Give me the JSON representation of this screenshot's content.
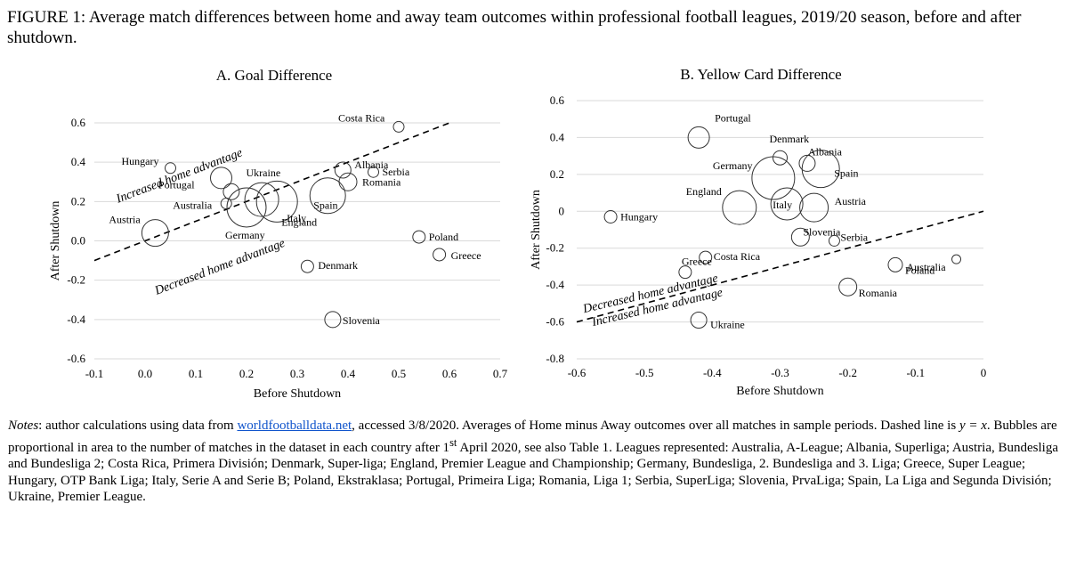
{
  "figure_title": "FIGURE 1: Average match differences between home and away team outcomes within professional football leagues, 2019/20 season, before and after shutdown.",
  "notes": {
    "lead": "Notes",
    "p1": ": author calculations using data from ",
    "link": "worldfootballdata.net",
    "p2": ", accessed 3/8/2020. Averages of Home minus Away outcomes over all matches in sample periods. Dashed line is ",
    "eq": "y = x",
    "p3": ". Bubbles are proportional in area to the number of matches in the dataset in each country after 1",
    "sup": "st",
    "p4": " April 2020, see also Table 1. Leagues represented: Australia, A-League; Albania, Superliga; Austria, Bundesliga and Bundesliga 2; Costa Rica, Primera División; Denmark, Super-liga; England, Premier League and Championship; Germany, Bundesliga, 2. Bundesliga and 3. Liga; Greece, Super League; Hungary, OTP Bank Liga; Italy, Serie A and Serie B; Poland, Ekstraklasa; Portugal, Primeira Liga; Romania, Liga 1; Serbia, SuperLiga; Slovenia, PrvaLiga; Spain, La Liga and Segunda División; Ukraine, Premier League."
  },
  "chart_data": [
    {
      "type": "scatter",
      "title": "A. Goal Difference",
      "xlabel": "Before Shutdown",
      "ylabel": "After Shutdown",
      "xlim": [
        -0.1,
        0.7
      ],
      "ylim": [
        -0.6,
        0.6
      ],
      "xticks": [
        "-0.1",
        "0.0",
        "0.1",
        "0.2",
        "0.3",
        "0.4",
        "0.5",
        "0.6",
        "0.7"
      ],
      "yticks": [
        "-0.6",
        "-0.4",
        "-0.2",
        "0.0",
        "0.2",
        "0.4",
        "0.6"
      ],
      "grid": "horizontal",
      "reference_line": "y = x",
      "region_labels": [
        "Increased home advantage",
        "Decreased home advantage"
      ],
      "points": [
        {
          "label": "Costa Rica",
          "x": 0.5,
          "y": 0.58,
          "size": 6
        },
        {
          "label": "Hungary",
          "x": 0.05,
          "y": 0.37,
          "size": 6
        },
        {
          "label": "Ukraine",
          "x": 0.15,
          "y": 0.32,
          "size": 12
        },
        {
          "label": "Albania",
          "x": 0.39,
          "y": 0.36,
          "size": 9
        },
        {
          "label": "Serbia",
          "x": 0.45,
          "y": 0.35,
          "size": 6
        },
        {
          "label": "Romania",
          "x": 0.4,
          "y": 0.3,
          "size": 10
        },
        {
          "label": "Portugal",
          "x": 0.17,
          "y": 0.25,
          "size": 9
        },
        {
          "label": "Australia",
          "x": 0.16,
          "y": 0.19,
          "size": 6
        },
        {
          "label": "Spain",
          "x": 0.36,
          "y": 0.23,
          "size": 20
        },
        {
          "label": "Austria",
          "x": 0.02,
          "y": 0.04,
          "size": 15
        },
        {
          "label": "Germany",
          "x": 0.2,
          "y": 0.17,
          "size": 22
        },
        {
          "label": "England",
          "x": 0.26,
          "y": 0.2,
          "size": 23
        },
        {
          "label": "Italy",
          "x": 0.23,
          "y": 0.21,
          "size": 19
        },
        {
          "label": "Poland",
          "x": 0.54,
          "y": 0.02,
          "size": 7
        },
        {
          "label": "Greece",
          "x": 0.58,
          "y": -0.07,
          "size": 7
        },
        {
          "label": "Denmark",
          "x": 0.32,
          "y": -0.13,
          "size": 7
        },
        {
          "label": "Slovenia",
          "x": 0.37,
          "y": -0.4,
          "size": 9
        }
      ]
    },
    {
      "type": "scatter",
      "title": "B. Yellow Card Difference",
      "xlabel": "Before Shutdown",
      "ylabel": "After Shutdown",
      "xlim": [
        -0.6,
        0
      ],
      "ylim": [
        -0.8,
        0.6
      ],
      "xticks": [
        "-0.6",
        "-0.5",
        "-0.4",
        "-0.3",
        "-0.2",
        "-0.1",
        "0"
      ],
      "yticks": [
        "-0.8",
        "-0.6",
        "-0.4",
        "-0.2",
        "0",
        "0.2",
        "0.4",
        "0.6"
      ],
      "grid": "horizontal",
      "reference_line": "y = x",
      "region_labels": [
        "Decreased home advantage",
        "Increased home advantage"
      ],
      "points": [
        {
          "label": "Portugal",
          "x": -0.42,
          "y": 0.4,
          "size": 12
        },
        {
          "label": "Denmark",
          "x": -0.3,
          "y": 0.29,
          "size": 8
        },
        {
          "label": "Albania",
          "x": -0.26,
          "y": 0.26,
          "size": 9
        },
        {
          "label": "Germany",
          "x": -0.31,
          "y": 0.18,
          "size": 24
        },
        {
          "label": "Spain",
          "x": -0.24,
          "y": 0.23,
          "size": 21
        },
        {
          "label": "England",
          "x": -0.36,
          "y": 0.02,
          "size": 19
        },
        {
          "label": "Italy",
          "x": -0.29,
          "y": 0.04,
          "size": 18
        },
        {
          "label": "Austria",
          "x": -0.25,
          "y": 0.02,
          "size": 16
        },
        {
          "label": "Hungary",
          "x": -0.55,
          "y": -0.03,
          "size": 7
        },
        {
          "label": "Slovenia",
          "x": -0.27,
          "y": -0.14,
          "size": 10
        },
        {
          "label": "Serbia",
          "x": -0.22,
          "y": -0.16,
          "size": 6
        },
        {
          "label": "Costa Rica",
          "x": -0.41,
          "y": -0.25,
          "size": 7
        },
        {
          "label": "Greece",
          "x": -0.44,
          "y": -0.33,
          "size": 7
        },
        {
          "label": "Poland",
          "x": -0.13,
          "y": -0.29,
          "size": 8
        },
        {
          "label": "Australia",
          "x": -0.04,
          "y": -0.26,
          "size": 5
        },
        {
          "label": "Romania",
          "x": -0.2,
          "y": -0.41,
          "size": 10
        },
        {
          "label": "Ukraine",
          "x": -0.42,
          "y": -0.59,
          "size": 9
        }
      ]
    }
  ]
}
